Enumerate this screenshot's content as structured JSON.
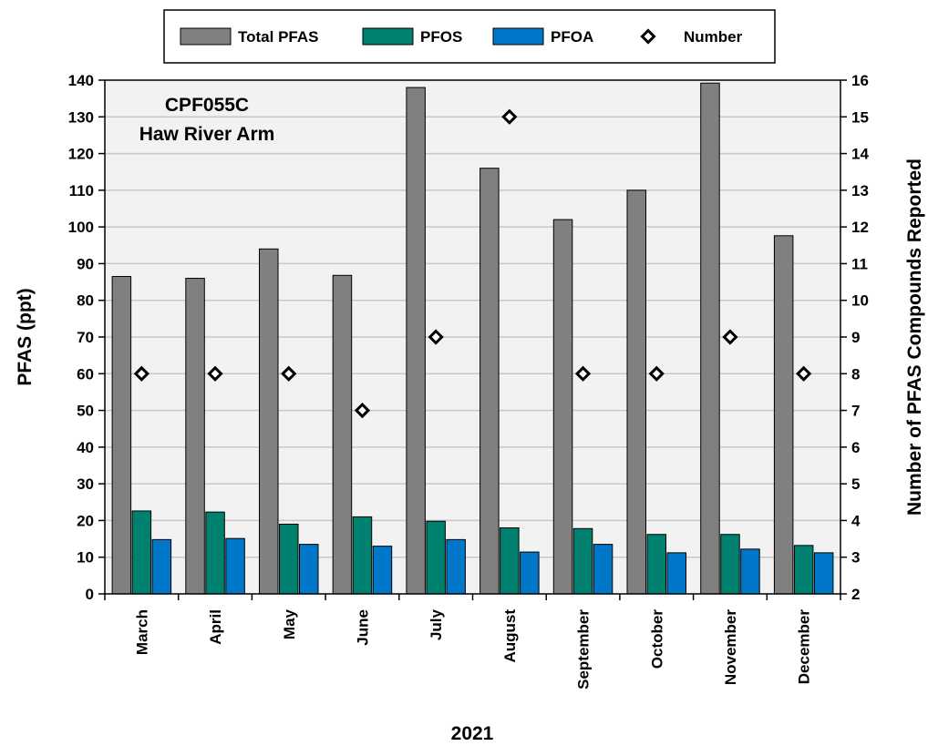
{
  "chart_data": {
    "type": "bar",
    "annotation": [
      "CPF055C",
      "Haw River Arm"
    ],
    "xlabel": "2021",
    "ylabel": "PFAS (ppt)",
    "y2label": "Number of PFAS Compounds Reported",
    "ylim": [
      0,
      140
    ],
    "y2lim": [
      2,
      16
    ],
    "yticks": [
      0,
      10,
      20,
      30,
      40,
      50,
      60,
      70,
      80,
      90,
      100,
      110,
      120,
      130,
      140
    ],
    "y2ticks": [
      2,
      3,
      4,
      5,
      6,
      7,
      8,
      9,
      10,
      11,
      12,
      13,
      14,
      15,
      16
    ],
    "grid": true,
    "legend_position": "top",
    "categories": [
      "March",
      "April",
      "May",
      "June",
      "July",
      "August",
      "September",
      "October",
      "November",
      "December"
    ],
    "series": [
      {
        "name": "Total PFAS",
        "kind": "bar",
        "axis": "left",
        "color": "#808080",
        "values": [
          86.5,
          86,
          94,
          86.8,
          138,
          116,
          102,
          110,
          139.2,
          97.6
        ]
      },
      {
        "name": "PFOS",
        "kind": "bar",
        "axis": "left",
        "color": "#00806e",
        "values": [
          22.6,
          22.3,
          19,
          21,
          19.8,
          18,
          17.8,
          16.2,
          16.2,
          13.2
        ]
      },
      {
        "name": "PFOA",
        "kind": "bar",
        "axis": "left",
        "color": "#0077c8",
        "values": [
          14.8,
          15.1,
          13.5,
          13,
          14.8,
          11.4,
          13.5,
          11.2,
          12.2,
          11.2
        ]
      },
      {
        "name": "Number",
        "kind": "marker",
        "axis": "right",
        "color": "#000000",
        "values": [
          8,
          8,
          8,
          7,
          9,
          15,
          8,
          8,
          9,
          8
        ]
      }
    ]
  }
}
